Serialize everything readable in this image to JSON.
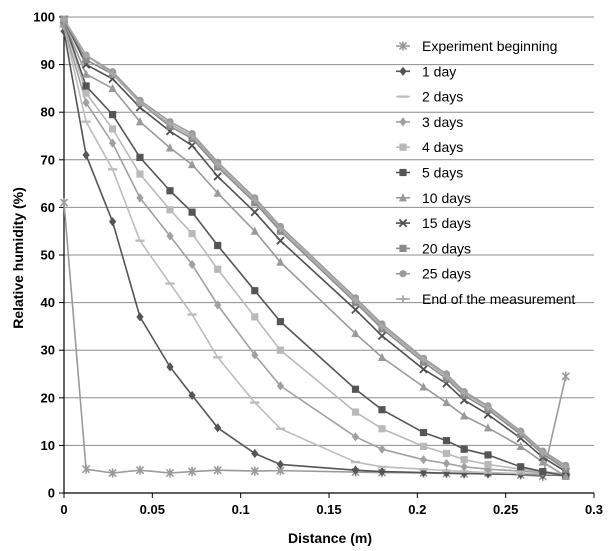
{
  "chart_data": {
    "type": "line",
    "title": "",
    "xlabel": "Distance (m)",
    "ylabel": "Relative humidity (%)",
    "xlim": [
      0,
      0.3
    ],
    "ylim": [
      0,
      100
    ],
    "xticks": [
      0,
      0.05,
      0.1,
      0.15,
      0.2,
      0.25,
      0.3
    ],
    "xtick_labels": [
      "0",
      "0.05",
      "0.1",
      "0.15",
      "0.2",
      "0.25",
      "0.3"
    ],
    "yticks": [
      0,
      10,
      20,
      30,
      40,
      50,
      60,
      70,
      80,
      90,
      100
    ],
    "grid": "horizontal",
    "legend": "top-right",
    "x": [
      0,
      0.0125,
      0.0275,
      0.043,
      0.06,
      0.0725,
      0.087,
      0.108,
      0.1225,
      0.165,
      0.18,
      0.2035,
      0.2165,
      0.2265,
      0.24,
      0.2585,
      0.271,
      0.284
    ],
    "series": [
      {
        "name": "Experiment beginning",
        "marker": "asterisk",
        "color": "#9a9a9a",
        "values": [
          61,
          5,
          4.2,
          4.8,
          4.2,
          4.5,
          4.8,
          4.6,
          4.7,
          4.4,
          4.3,
          4.2,
          4.1,
          4.0,
          4.2,
          3.8,
          3.5,
          24.5
        ]
      },
      {
        "name": "1 day",
        "marker": "diamond",
        "color": "#555555",
        "values": [
          97,
          71,
          57,
          37,
          26.5,
          20.5,
          13.7,
          8.3,
          6.0,
          4.8,
          4.5,
          4.3,
          4.2,
          4.1,
          4.0,
          3.9,
          3.8,
          3.7
        ]
      },
      {
        "name": "2 days",
        "marker": "dash",
        "color": "#bdbdbd",
        "values": [
          98,
          78,
          68,
          53,
          44,
          37.5,
          28.5,
          19,
          13.5,
          6.5,
          5.5,
          5.0,
          4.7,
          4.5,
          4.3,
          4.1,
          4.0,
          3.8
        ]
      },
      {
        "name": "3 days",
        "marker": "diamond",
        "color": "#a0a0a0",
        "values": [
          98,
          82,
          73.5,
          62,
          54,
          48,
          39.5,
          29,
          22.5,
          11.8,
          9.2,
          7.0,
          6.2,
          5.5,
          5.0,
          4.6,
          4.3,
          4.0
        ]
      },
      {
        "name": "4 days",
        "marker": "square",
        "color": "#b9b9b9",
        "values": [
          99,
          84,
          76.5,
          67,
          59.5,
          54.5,
          47,
          37,
          30,
          17,
          13.5,
          9.8,
          8.3,
          7.0,
          6.0,
          5.0,
          4.5,
          4.0
        ]
      },
      {
        "name": "5 days",
        "marker": "square",
        "color": "#555555",
        "values": [
          99,
          85.5,
          79.5,
          70.5,
          63.5,
          59,
          52,
          42.5,
          36,
          21.8,
          17.5,
          12.7,
          11,
          9.2,
          8.0,
          5.5,
          4.5,
          3.6
        ]
      },
      {
        "name": "10 days",
        "marker": "triangle",
        "color": "#9a9a9a",
        "values": [
          99,
          88,
          85,
          78,
          72.5,
          69,
          63,
          55,
          48.5,
          33.5,
          28.5,
          22.3,
          19,
          16.2,
          13.7,
          9.8,
          6.5,
          3.5
        ]
      },
      {
        "name": "15 days",
        "marker": "x",
        "color": "#505050",
        "values": [
          99.5,
          90,
          87,
          81,
          76,
          73,
          66.5,
          59,
          53,
          38.5,
          33,
          26,
          23,
          19.5,
          16.5,
          11.5,
          7.5,
          4.5
        ]
      },
      {
        "name": "20 days",
        "marker": "square",
        "color": "#8a8a8a",
        "values": [
          99.5,
          91,
          88,
          82,
          77,
          74.5,
          68.5,
          61,
          55,
          40,
          34.5,
          27.5,
          24,
          20.5,
          17.5,
          12.3,
          8.2,
          5.0
        ]
      },
      {
        "name": "25 days",
        "marker": "circle",
        "color": "#9a9a9a",
        "values": [
          99.5,
          92,
          88.5,
          82.5,
          78,
          75.5,
          69.5,
          62,
          56,
          41,
          35.5,
          28.3,
          25,
          21.3,
          18.3,
          13,
          8.8,
          5.8
        ]
      },
      {
        "name": "End of the measurement",
        "marker": "plus",
        "color": "#a8a8a8",
        "values": [
          99.5,
          92,
          88,
          82,
          77.5,
          75,
          69,
          61.5,
          55.5,
          40.5,
          35,
          28,
          24.5,
          21,
          18,
          12.7,
          8.5,
          5.5
        ]
      }
    ]
  }
}
